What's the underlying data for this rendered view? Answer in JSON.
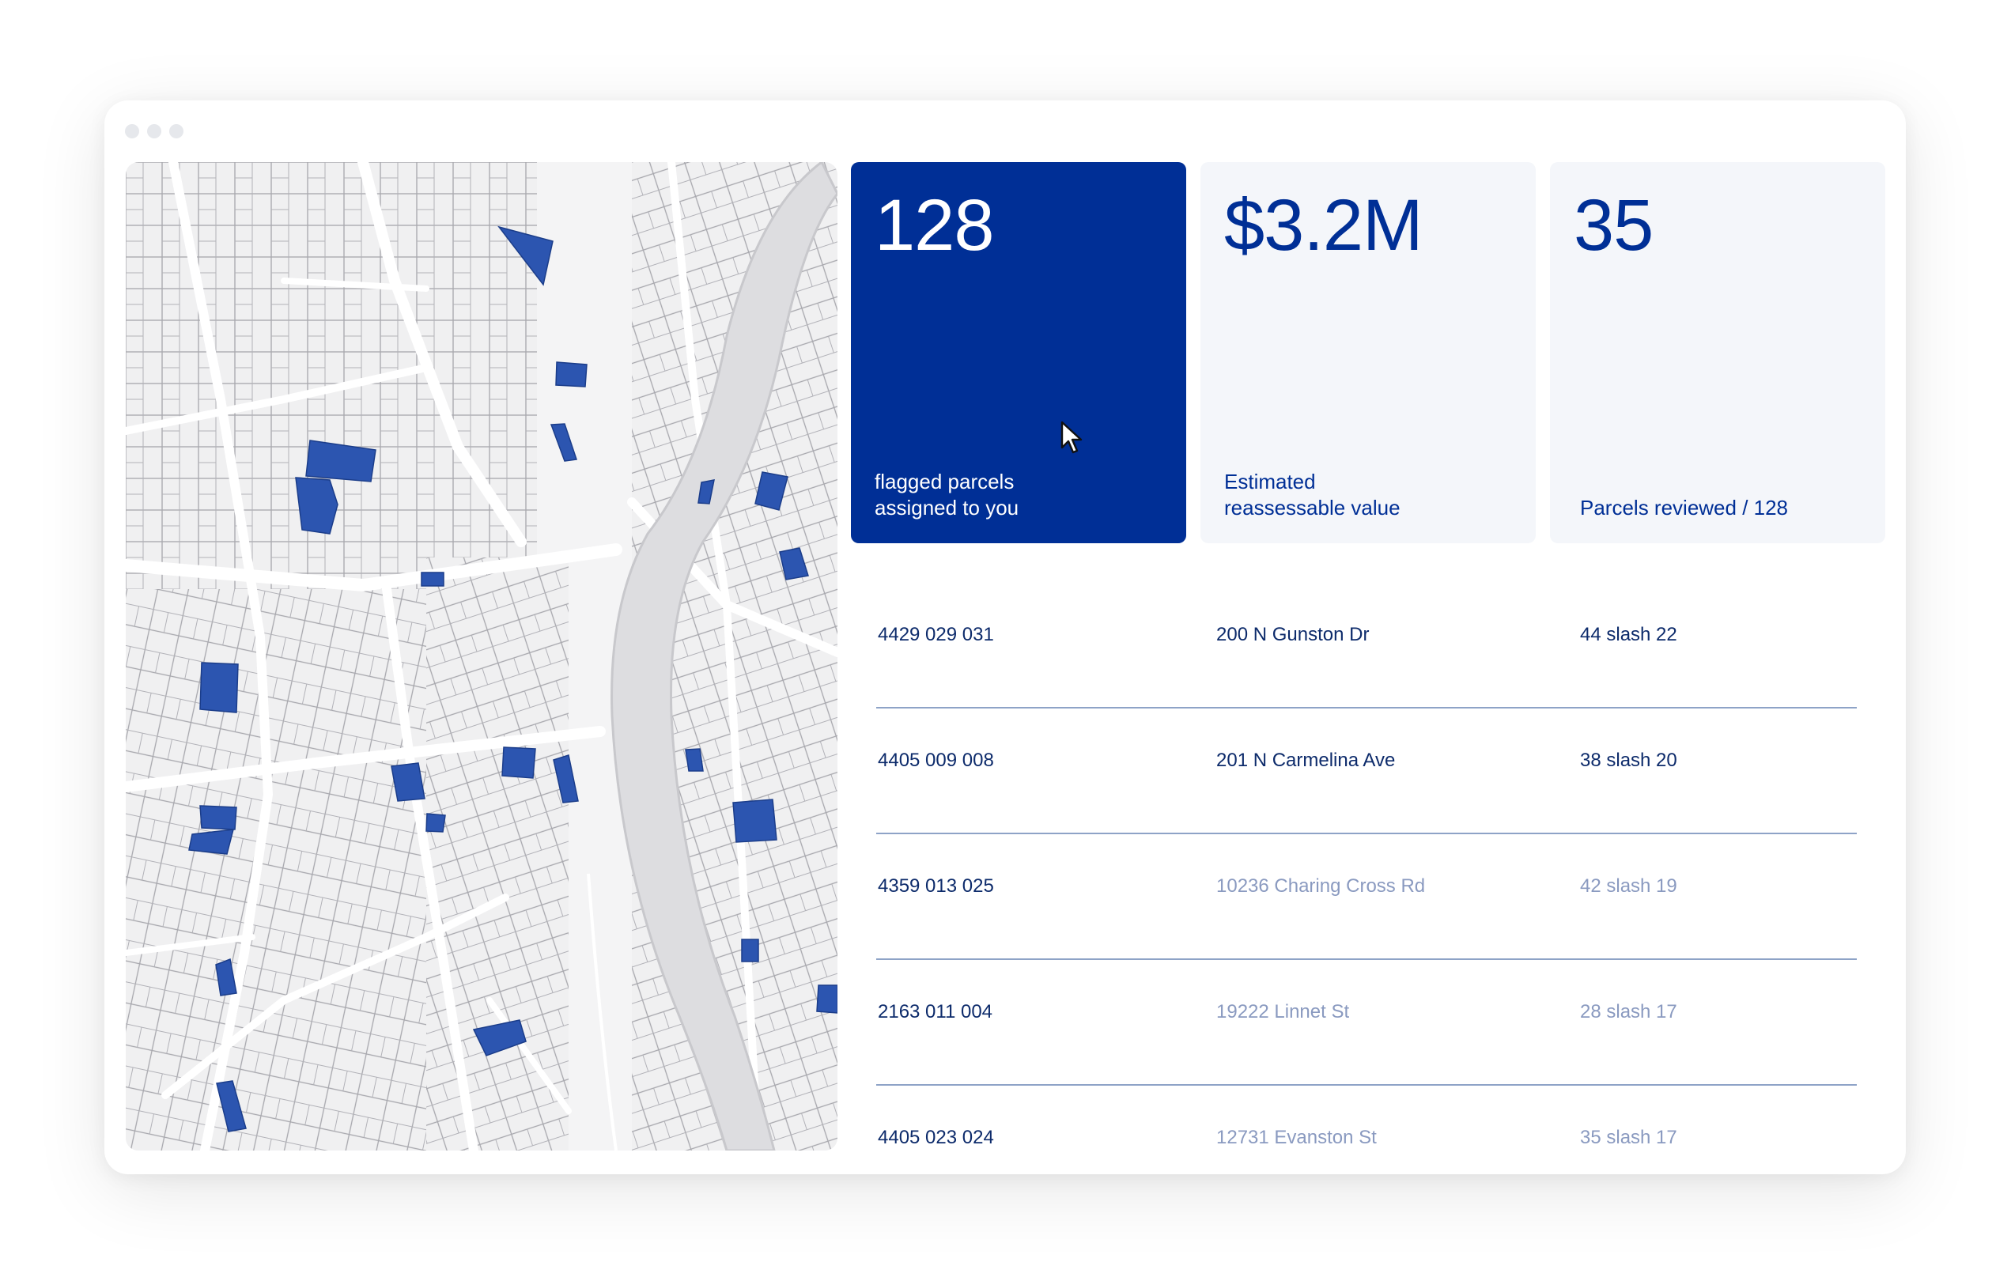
{
  "window": {
    "traffic_lights": [
      "dot",
      "dot",
      "dot"
    ]
  },
  "map": {
    "description_icon": "parcel-map",
    "colors": {
      "background": "#f4f4f5",
      "parcel_fill": "#f0f0f1",
      "parcel_stroke": "#9a9aa0",
      "road": "#ffffff",
      "river": "#dddde0",
      "flagged": "#2c55b0"
    }
  },
  "stats": [
    {
      "value": "128",
      "label": "flagged parcels\nassigned to you",
      "style": "primary"
    },
    {
      "value": "$3.2M",
      "label": "Estimated\nreassessable value",
      "style": "light"
    },
    {
      "value": "35",
      "label": "Parcels reviewed / 128",
      "style": "light"
    }
  ],
  "parcels": [
    {
      "id": "4429 029 031",
      "address": "200 N Gunston Dr",
      "ratio": "44 slash 22",
      "muted": false
    },
    {
      "id": "4405 009 008",
      "address": "201 N Carmelina Ave",
      "ratio": "38 slash 20",
      "muted": false
    },
    {
      "id": "4359 013 025",
      "address": "10236 Charing Cross Rd",
      "ratio": "42 slash 19",
      "muted": true
    },
    {
      "id": "2163 011 004",
      "address": "19222 Linnet St",
      "ratio": "28 slash 17",
      "muted": true
    },
    {
      "id": "4405 023 024",
      "address": "12731 Evanston St",
      "ratio": "35 slash 17",
      "muted": true
    }
  ],
  "colors": {
    "accent": "#002f96",
    "card_bg": "#f4f6fa",
    "divider": "#8ea3c7",
    "muted_text": "#8a9ac0"
  }
}
